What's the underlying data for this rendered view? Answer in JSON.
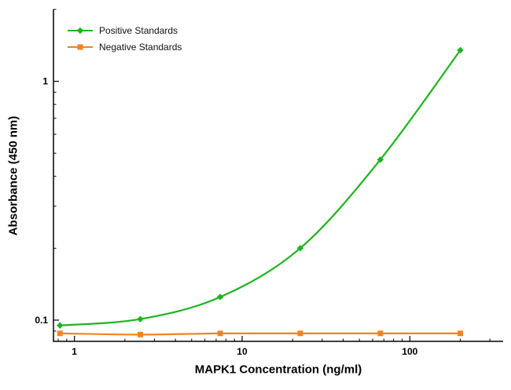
{
  "figure": {
    "background": "#ffffff",
    "axis_color": "#000000"
  },
  "chart_data": {
    "type": "line",
    "title": "",
    "xlabel": "MAPK1 Concentration (ng/ml)",
    "ylabel": "Absorbance (450 nm)",
    "x_scale": "log",
    "y_scale": "log",
    "xlim": [
      0.75,
      360
    ],
    "ylim": [
      0.0815,
      2.0
    ],
    "x_major_ticks": [
      1,
      10,
      100
    ],
    "x_minor_ticks": [
      0.8,
      0.9,
      2,
      3,
      4,
      5,
      6,
      7,
      8,
      9,
      20,
      30,
      40,
      50,
      60,
      70,
      80,
      90,
      200,
      300
    ],
    "y_major_ticks": [
      0.1,
      1
    ],
    "y_minor_ticks": [
      0.09,
      0.2,
      0.3,
      0.4,
      0.5,
      0.6,
      0.7,
      0.8,
      0.9,
      2
    ],
    "x": [
      0.82,
      2.47,
      7.4,
      22.2,
      66.7,
      200
    ],
    "series": [
      {
        "name": "Positive Standards",
        "color": "#1db41d",
        "marker": "diamond",
        "values": [
          0.095,
          0.101,
          0.125,
          0.2,
          0.47,
          1.35
        ]
      },
      {
        "name": "Negative Standards",
        "color": "#f58220",
        "marker": "square",
        "values": [
          0.088,
          0.087,
          0.088,
          0.088,
          0.088,
          0.088
        ]
      }
    ],
    "legend_position": "top-left",
    "grid": false
  }
}
